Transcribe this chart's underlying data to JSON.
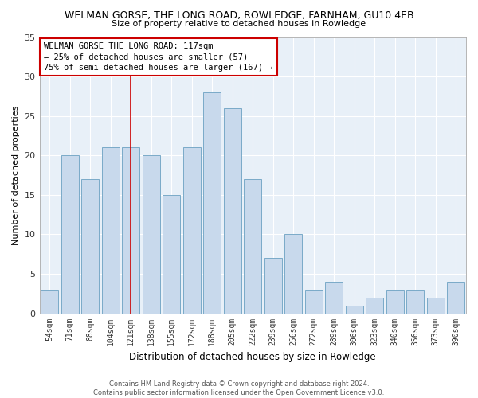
{
  "title": "WELMAN GORSE, THE LONG ROAD, ROWLEDGE, FARNHAM, GU10 4EB",
  "subtitle": "Size of property relative to detached houses in Rowledge",
  "xlabel": "Distribution of detached houses by size in Rowledge",
  "ylabel": "Number of detached properties",
  "categories": [
    "54sqm",
    "71sqm",
    "88sqm",
    "104sqm",
    "121sqm",
    "138sqm",
    "155sqm",
    "172sqm",
    "188sqm",
    "205sqm",
    "222sqm",
    "239sqm",
    "256sqm",
    "272sqm",
    "289sqm",
    "306sqm",
    "323sqm",
    "340sqm",
    "356sqm",
    "373sqm",
    "390sqm"
  ],
  "values": [
    3,
    20,
    17,
    21,
    21,
    20,
    15,
    21,
    28,
    26,
    17,
    7,
    10,
    3,
    4,
    1,
    2,
    3,
    3,
    2,
    4
  ],
  "bar_color": "#c8d9ec",
  "bar_edge_color": "#7aaac8",
  "vline_index": 4,
  "vline_color": "#cc0000",
  "ylim": [
    0,
    35
  ],
  "yticks": [
    0,
    5,
    10,
    15,
    20,
    25,
    30,
    35
  ],
  "annotation_title": "WELMAN GORSE THE LONG ROAD: 117sqm",
  "annotation_line1": "← 25% of detached houses are smaller (57)",
  "annotation_line2": "75% of semi-detached houses are larger (167) →",
  "footer_line1": "Contains HM Land Registry data © Crown copyright and database right 2024.",
  "footer_line2": "Contains public sector information licensed under the Open Government Licence v3.0.",
  "background_color": "#ffffff",
  "plot_bg_color": "#e8f0f8",
  "grid_color": "#ffffff"
}
